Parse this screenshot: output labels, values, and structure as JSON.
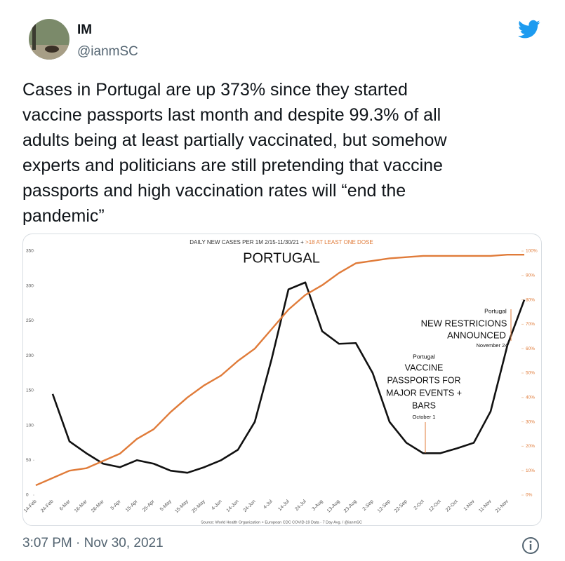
{
  "tweet": {
    "name": "IM",
    "handle": "@ianmSC",
    "text": [
      "Cases in Portugal are up 373% since they started",
      "vaccine passports last month and despite 99.3% of all",
      "adults being at least partially vaccinated, but somehow",
      "experts and politicians are still pretending that vaccine",
      "passports and high vaccination rates will “end the",
      "pandemic”"
    ],
    "timestamp": "3:07 PM · Nov 30, 2021"
  },
  "chart_data": {
    "type": "line",
    "title": "DAILY NEW CASES PER 1M 2/15-11/30/21 + ",
    "title_highlight": ">18 AT LEAST ONE DOSE",
    "source": "Source: World Health Organization + European CDC COVID-19 Data - 7 Day Avg. / @ianmSC",
    "annotations": [
      {
        "lines": [
          "PORTUGAL"
        ]
      },
      {
        "lines": [
          "Portugal"
        ]
      },
      {
        "lines": [
          "NEW RESTRICIONS",
          "ANNOUNCED"
        ]
      },
      {
        "lines": [
          "November 24"
        ]
      },
      {
        "lines": [
          "Portugal"
        ]
      },
      {
        "lines": [
          "VACCINE",
          "PASSPORTS FOR",
          "MAJOR EVENTS +",
          "BARS"
        ]
      },
      {
        "lines": [
          "October 1"
        ]
      }
    ],
    "categories": [
      "14-Feb",
      "24-Feb",
      "6-Mar",
      "16-Mar",
      "26-Mar",
      "5-Apr",
      "15-Apr",
      "25-Apr",
      "5-May",
      "15-May",
      "25-May",
      "4-Jun",
      "14-Jun",
      "24-Jun",
      "4-Jul",
      "14-Jul",
      "24-Jul",
      "3-Aug",
      "13-Aug",
      "23-Aug",
      "2-Sep",
      "12-Sep",
      "22-Sep",
      "2-Oct",
      "12-Oct",
      "22-Oct",
      "1-Nov",
      "11-Nov",
      "21-Nov",
      null
    ],
    "series": [
      {
        "name": "Daily new cases per 1M",
        "color": "#111111",
        "values": [
          null,
          145,
          77,
          60,
          45,
          40,
          50,
          45,
          35,
          32,
          40,
          50,
          65,
          105,
          195,
          295,
          305,
          235,
          217,
          218,
          175,
          105,
          75,
          60,
          60,
          67,
          75,
          120,
          215,
          280
        ]
      },
      {
        "name": "At least one dose",
        "color": "#e07b39",
        "axis": "y2",
        "values": [
          4,
          7,
          10,
          11,
          14,
          17,
          23,
          27,
          34,
          40,
          45,
          49,
          55,
          60,
          68,
          76,
          82,
          86,
          91,
          95,
          96,
          97,
          97.5,
          98,
          98,
          98,
          98,
          98,
          98.5,
          98.5
        ]
      }
    ],
    "ylim": [
      0,
      350
    ],
    "yticks": [
      0,
      50,
      100,
      150,
      200,
      250,
      300,
      350
    ],
    "y2lim": [
      0,
      100
    ],
    "y2ticks": [
      {
        "value": 0,
        "label": "0%"
      },
      {
        "value": 10,
        "label": "10%"
      },
      {
        "value": 20,
        "label": "20%"
      },
      {
        "value": 30,
        "label": "30%"
      },
      {
        "value": 40,
        "label": "40%"
      },
      {
        "value": 50,
        "label": "50%"
      },
      {
        "value": 60,
        "label": "60%"
      },
      {
        "value": 70,
        "label": "70%"
      },
      {
        "value": 80,
        "label": "80%"
      },
      {
        "value": 90,
        "label": "90%"
      },
      {
        "value": 100,
        "label": "100%"
      }
    ],
    "grid": false
  }
}
